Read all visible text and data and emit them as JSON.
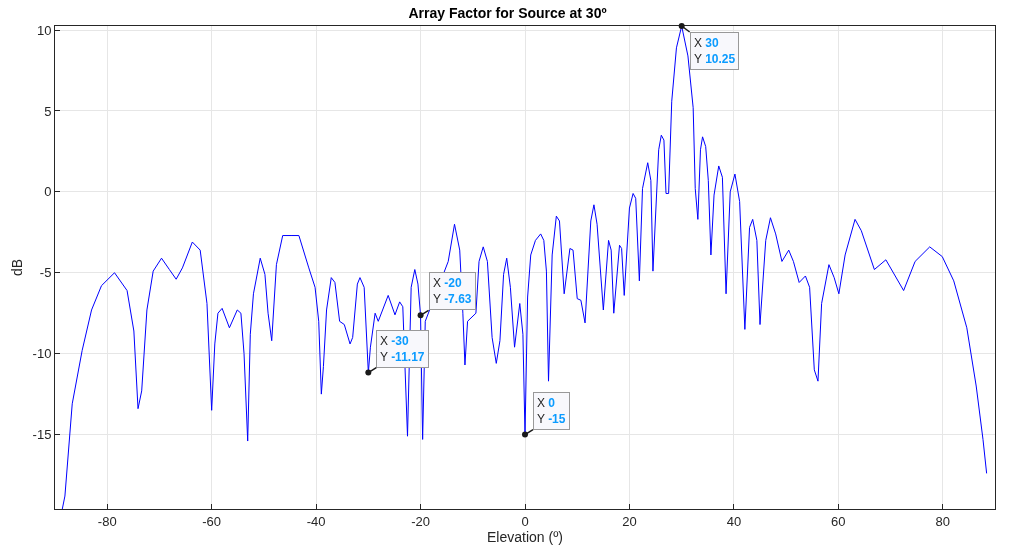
{
  "chart_data": {
    "type": "line",
    "title": "Array Factor for Source at 30º",
    "xlabel": "Elevation (º)",
    "ylabel": "dB",
    "x": [
      -88.6,
      -88.1,
      -86.7,
      -84.8,
      -83.0,
      -81.1,
      -78.6,
      -76.2,
      -74.9,
      -74.1,
      -73.4,
      -72.4,
      -71.2,
      -69.6,
      -68.1,
      -66.8,
      -65.6,
      -63.7,
      -62.2,
      -60.9,
      -60.0,
      -59.4,
      -58.8,
      -58.0,
      -56.6,
      -55.1,
      -54.4,
      -53.8,
      -53.1,
      -52.6,
      -52.0,
      -50.7,
      -49.8,
      -49.2,
      -48.5,
      -47.6,
      -46.4,
      -44.8,
      -43.3,
      -41.4,
      -40.2,
      -39.5,
      -39.0,
      -38.6,
      -38.0,
      -37.1,
      -36.4,
      -35.5,
      -34.6,
      -33.5,
      -33.0,
      -32.1,
      -31.6,
      -30.8,
      -30,
      -29.6,
      -28.7,
      -28.1,
      -26.2,
      -24.9,
      -24.0,
      -23.4,
      -22.5,
      -21.8,
      -21.1,
      -20.5,
      -20,
      -19.6,
      -19.1,
      -14.7,
      -13.5,
      -12.5,
      -11.9,
      -11.5,
      -11.0,
      -9.4,
      -8.8,
      -8.0,
      -7.2,
      -6.3,
      -5.5,
      -4.8,
      -4.1,
      -3.5,
      -2.8,
      -2.0,
      -1.0,
      -0.4,
      0,
      0.5,
      1.1,
      2.0,
      3.0,
      3.6,
      4.1,
      4.5,
      5.2,
      6.0,
      6.6,
      7.5,
      8.6,
      9.2,
      10.0,
      10.7,
      11.5,
      12.6,
      13.2,
      13.8,
      15.0,
      16.0,
      16.5,
      17.0,
      18.1,
      18.5,
      19.0,
      20.0,
      20.7,
      21.2,
      21.9,
      22.5,
      23.5,
      24.1,
      24.5,
      25.6,
      26.1,
      26.6,
      27.0,
      27.5,
      28.1,
      29.0,
      30,
      31.2,
      32.2,
      32.6,
      33.1,
      33.6,
      34.0,
      34.6,
      35.1,
      35.6,
      36.2,
      37.1,
      37.8,
      38.5,
      39.3,
      40.2,
      41.1,
      42.1,
      43.0,
      43.6,
      44.4,
      45.0,
      46.1,
      47.0,
      48.0,
      49.2,
      50.5,
      51.4,
      52.5,
      53.7,
      54.5,
      55.4,
      56.1,
      56.8,
      58.2,
      59.2,
      60.1,
      61.3,
      63.2,
      64.4,
      66.9,
      69.1,
      72.5,
      74.7,
      77.5,
      79.9,
      82.1,
      84.6,
      86.4,
      87.7,
      88.4
    ],
    "series": [
      {
        "color": "#0000ff",
        "values": [
          -19.6,
          -18.8,
          -13.1,
          -9.8,
          -7.3,
          -5.8,
          -5.0,
          -6.1,
          -8.6,
          -13.4,
          -12.3,
          -7.3,
          -4.9,
          -4.1,
          -4.8,
          -5.4,
          -4.7,
          -3.1,
          -3.6,
          -6.9,
          -13.5,
          -9.4,
          -7.5,
          -7.2,
          -8.4,
          -7.3,
          -7.5,
          -10.0,
          -15.4,
          -8.8,
          -6.3,
          -4.1,
          -5.1,
          -7.5,
          -9.2,
          -4.5,
          -2.7,
          -2.7,
          -2.7,
          -4.7,
          -5.9,
          -8.0,
          -12.5,
          -10.8,
          -7.3,
          -5.3,
          -5.6,
          -8.0,
          -8.2,
          -9.4,
          -9.0,
          -5.7,
          -5.3,
          -5.9,
          -11.17,
          -9.6,
          -7.5,
          -8.0,
          -6.4,
          -7.6,
          -6.8,
          -7.1,
          -15.1,
          -5.9,
          -4.8,
          -5.7,
          -7.63,
          -15.3,
          -8.0,
          -4.3,
          -2.0,
          -3.6,
          -7.5,
          -10.7,
          -8.0,
          -7.5,
          -4.3,
          -3.4,
          -4.3,
          -9.0,
          -10.6,
          -9.2,
          -5.1,
          -4.1,
          -5.9,
          -9.6,
          -6.9,
          -8.8,
          -15,
          -6.5,
          -3.9,
          -3.0,
          -2.6,
          -3.0,
          -4.9,
          -11.7,
          -3.9,
          -1.5,
          -1.8,
          -6.3,
          -3.5,
          -3.6,
          -6.6,
          -6.7,
          -8.1,
          -1.8,
          -0.8,
          -2.0,
          -7.3,
          -3.0,
          -3.6,
          -7.5,
          -3.3,
          -3.5,
          -6.4,
          -1.0,
          -0.1,
          -0.4,
          -5.5,
          0.2,
          1.8,
          0.7,
          -4.9,
          2.6,
          3.5,
          3.2,
          -0.1,
          -0.1,
          5.6,
          8.9,
          10.25,
          8.4,
          5.2,
          0.2,
          -1.7,
          2.6,
          3.4,
          2.8,
          0.7,
          -3.9,
          -0.2,
          1.6,
          0.9,
          -6.3,
          0.0,
          1.1,
          -0.6,
          -8.5,
          -2.2,
          -1.7,
          -3.0,
          -8.2,
          -3.0,
          -1.6,
          -2.6,
          -4.3,
          -3.6,
          -4.3,
          -5.6,
          -5.2,
          -5.9,
          -11.0,
          -11.7,
          -6.9,
          -4.5,
          -5.3,
          -6.3,
          -3.9,
          -1.7,
          -2.4,
          -4.8,
          -4.2,
          -6.1,
          -4.3,
          -3.4,
          -4.0,
          -5.5,
          -8.4,
          -12.0,
          -15.3,
          -17.4
        ]
      }
    ],
    "xlim": [
      -90,
      90
    ],
    "ylim": [
      -19.6,
      10.25
    ],
    "xticks": [
      -80,
      -60,
      -40,
      -20,
      0,
      20,
      40,
      60,
      80
    ],
    "yticks": [
      -15,
      -10,
      -5,
      0,
      5,
      10
    ],
    "grid": true,
    "annotations": [
      {
        "text": "X -30\nY -11.17",
        "x": -30,
        "y": -11.17
      },
      {
        "text": "X -20\nY -7.63",
        "x": -20,
        "y": -7.63
      },
      {
        "text": "X 0\nY -15",
        "x": 0,
        "y": -15
      },
      {
        "text": "X 30\nY 10.25",
        "x": 30,
        "y": 10.25
      }
    ]
  }
}
